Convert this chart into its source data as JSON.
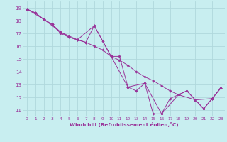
{
  "xlabel": "Windchill (Refroidissement éolien,°C)",
  "bg_color": "#c8eef0",
  "grid_color": "#b0d8dc",
  "line_color": "#993399",
  "marker_color": "#993399",
  "xlim": [
    -0.5,
    23.5
  ],
  "ylim": [
    10.5,
    19.5
  ],
  "xticks": [
    0,
    1,
    2,
    3,
    4,
    5,
    6,
    7,
    8,
    9,
    10,
    11,
    12,
    13,
    14,
    15,
    16,
    17,
    18,
    19,
    20,
    21,
    22,
    23
  ],
  "yticks": [
    11,
    12,
    13,
    14,
    15,
    16,
    17,
    18,
    19
  ],
  "series1": [
    [
      0,
      18.9
    ],
    [
      1,
      18.6
    ],
    [
      2,
      18.1
    ],
    [
      3,
      17.7
    ],
    [
      4,
      17.0
    ],
    [
      5,
      16.7
    ],
    [
      6,
      16.5
    ],
    [
      7,
      16.3
    ],
    [
      8,
      17.6
    ],
    [
      9,
      16.4
    ],
    [
      10,
      15.2
    ],
    [
      11,
      15.2
    ],
    [
      12,
      12.8
    ],
    [
      13,
      12.5
    ],
    [
      14,
      13.1
    ],
    [
      15,
      10.7
    ],
    [
      16,
      10.7
    ],
    [
      17,
      11.9
    ],
    [
      18,
      12.2
    ],
    [
      19,
      12.5
    ],
    [
      20,
      11.8
    ],
    [
      21,
      11.1
    ],
    [
      22,
      11.9
    ],
    [
      23,
      12.7
    ]
  ],
  "series2": [
    [
      0,
      18.9
    ],
    [
      1,
      18.6
    ],
    [
      2,
      18.1
    ],
    [
      3,
      17.7
    ],
    [
      4,
      17.1
    ],
    [
      5,
      16.7
    ],
    [
      6,
      16.5
    ],
    [
      7,
      16.3
    ],
    [
      8,
      16.0
    ],
    [
      9,
      15.7
    ],
    [
      10,
      15.2
    ],
    [
      11,
      14.9
    ],
    [
      12,
      14.5
    ],
    [
      13,
      14.0
    ],
    [
      14,
      13.6
    ],
    [
      15,
      13.3
    ],
    [
      16,
      12.9
    ],
    [
      17,
      12.5
    ],
    [
      18,
      12.2
    ],
    [
      19,
      12.5
    ],
    [
      20,
      11.8
    ],
    [
      21,
      11.1
    ],
    [
      22,
      11.9
    ],
    [
      23,
      12.7
    ]
  ],
  "series3": [
    [
      0,
      18.9
    ],
    [
      2,
      18.1
    ],
    [
      4,
      17.1
    ],
    [
      6,
      16.5
    ],
    [
      8,
      17.6
    ],
    [
      10,
      15.2
    ],
    [
      12,
      12.8
    ],
    [
      14,
      13.1
    ],
    [
      16,
      10.7
    ],
    [
      18,
      12.2
    ],
    [
      20,
      11.8
    ],
    [
      22,
      11.9
    ],
    [
      23,
      12.7
    ]
  ]
}
